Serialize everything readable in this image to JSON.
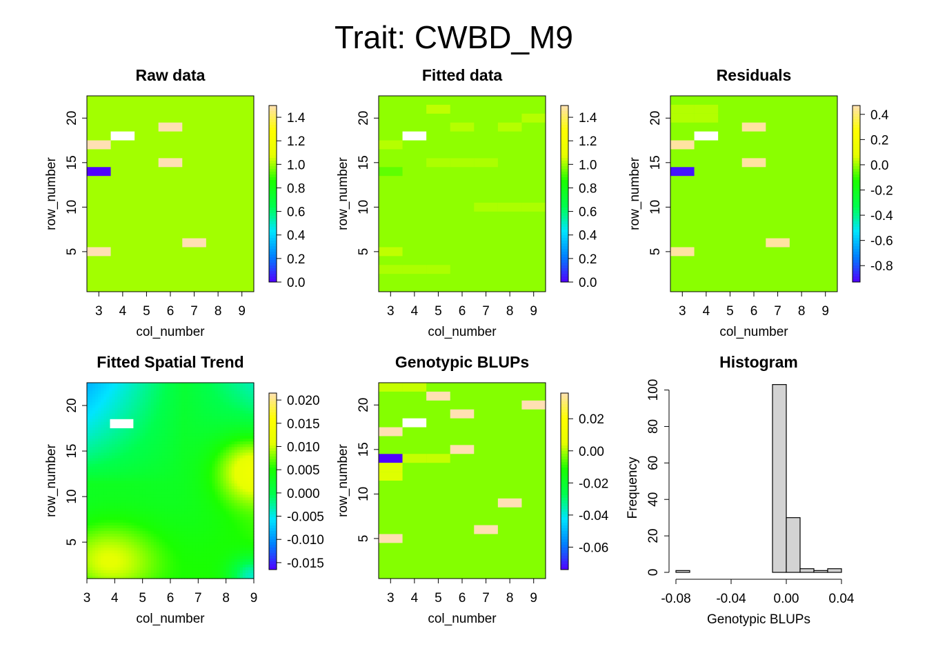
{
  "suptitle": "Trait: CWBD_M9",
  "colors": {
    "scale": [
      "#5000ff",
      "#0080ff",
      "#00e5ff",
      "#00ff4d",
      "#1aff00",
      "#e6ff00",
      "#ffff00",
      "#ffe0b3"
    ],
    "missing": "#ffffff",
    "hist_fill": "#d3d3d3"
  },
  "chart_data": [
    {
      "type": "heatmap",
      "title": "Raw data",
      "xlabel": "col_number",
      "ylabel": "row_number",
      "xticks": [
        3,
        4,
        5,
        6,
        7,
        8,
        9
      ],
      "yticks": [
        5,
        10,
        15,
        20
      ],
      "xlim": [
        2.5,
        9.5
      ],
      "ylim": [
        0.5,
        22.5
      ],
      "zlim": [
        0,
        1.5
      ],
      "background_value": 1.0,
      "cells": [
        {
          "x": 3,
          "y": 17,
          "z": 1.5
        },
        {
          "x": 3,
          "y": 14,
          "z": 0.0
        },
        {
          "x": 3,
          "y": 5,
          "z": 1.5
        },
        {
          "x": 4,
          "y": 18,
          "z": null
        },
        {
          "x": 6,
          "y": 19,
          "z": 1.5
        },
        {
          "x": 6,
          "y": 15,
          "z": 1.5
        },
        {
          "x": 7,
          "y": 6,
          "z": 1.5
        }
      ],
      "legend": {
        "ticks": [
          "1.4",
          "1.2",
          "1.0",
          "0.8",
          "0.6",
          "0.4",
          "0.2",
          "0.0"
        ],
        "values": [
          1.4,
          1.2,
          1.0,
          0.8,
          0.6,
          0.4,
          0.2,
          0.0
        ]
      }
    },
    {
      "type": "heatmap",
      "title": "Fitted data",
      "xlabel": "col_number",
      "ylabel": "row_number",
      "xticks": [
        3,
        4,
        5,
        6,
        7,
        8,
        9
      ],
      "yticks": [
        5,
        10,
        15,
        20
      ],
      "xlim": [
        2.5,
        9.5
      ],
      "ylim": [
        0.5,
        22.5
      ],
      "zlim": [
        0,
        1.5
      ],
      "background_value": 0.98,
      "cells": [
        {
          "x": 3,
          "y": 14,
          "z": 0.93
        },
        {
          "x": 3,
          "y": 17,
          "z": 1.02
        },
        {
          "x": 3,
          "y": 5,
          "z": 1.03
        },
        {
          "x": 4,
          "y": 18,
          "z": null
        },
        {
          "x": 5,
          "y": 21,
          "z": 1.03
        },
        {
          "x": 6,
          "y": 19,
          "z": 1.02
        },
        {
          "x": 8,
          "y": 19,
          "z": 1.02
        },
        {
          "x": 9,
          "y": 20,
          "z": 1.02
        },
        {
          "x": 5,
          "y": 15,
          "z": 1.01
        },
        {
          "x": 6,
          "y": 15,
          "z": 1.01
        },
        {
          "x": 7,
          "y": 15,
          "z": 1.01
        },
        {
          "x": 7,
          "y": 10,
          "z": 1.01
        },
        {
          "x": 8,
          "y": 10,
          "z": 1.01
        },
        {
          "x": 9,
          "y": 10,
          "z": 1.01
        },
        {
          "x": 3,
          "y": 3,
          "z": 1.01
        },
        {
          "x": 4,
          "y": 3,
          "z": 1.01
        },
        {
          "x": 5,
          "y": 3,
          "z": 1.01
        }
      ],
      "legend": {
        "ticks": [
          "1.4",
          "1.2",
          "1.0",
          "0.8",
          "0.6",
          "0.4",
          "0.2",
          "0.0"
        ],
        "values": [
          1.4,
          1.2,
          1.0,
          0.8,
          0.6,
          0.4,
          0.2,
          0.0
        ]
      }
    },
    {
      "type": "heatmap",
      "title": "Residuals",
      "xlabel": "col_number",
      "ylabel": "row_number",
      "xticks": [
        3,
        4,
        5,
        6,
        7,
        8,
        9
      ],
      "yticks": [
        5,
        10,
        15,
        20
      ],
      "xlim": [
        2.5,
        9.5
      ],
      "ylim": [
        0.5,
        22.5
      ],
      "zlim": [
        -0.93,
        0.47
      ],
      "background_value": -0.02,
      "cells": [
        {
          "x": 3,
          "y": 17,
          "z": 0.45
        },
        {
          "x": 3,
          "y": 14,
          "z": -0.9
        },
        {
          "x": 3,
          "y": 5,
          "z": 0.45
        },
        {
          "x": 4,
          "y": 18,
          "z": null
        },
        {
          "x": 6,
          "y": 19,
          "z": 0.45
        },
        {
          "x": 6,
          "y": 15,
          "z": 0.45
        },
        {
          "x": 7,
          "y": 6,
          "z": 0.45
        },
        {
          "x": 3,
          "y": 21,
          "z": 0.02
        },
        {
          "x": 4,
          "y": 21,
          "z": 0.02
        },
        {
          "x": 3,
          "y": 20,
          "z": 0.02
        },
        {
          "x": 4,
          "y": 20,
          "z": 0.02
        }
      ],
      "legend": {
        "ticks": [
          "0.4",
          "0.2",
          "0.0",
          "-0.2",
          "-0.4",
          "-0.6",
          "-0.8"
        ],
        "values": [
          0.4,
          0.2,
          0.0,
          -0.2,
          -0.4,
          -0.6,
          -0.8
        ]
      }
    },
    {
      "type": "heatmap",
      "title": "Fitted Spatial Trend",
      "xlabel": "col_number",
      "ylabel": "row_number",
      "xticks": [
        3,
        4,
        5,
        6,
        7,
        8,
        9
      ],
      "yticks": [
        5,
        10,
        15,
        20
      ],
      "xlim": [
        3,
        9
      ],
      "ylim": [
        1,
        22.5
      ],
      "zlim": [
        -0.0165,
        0.0215
      ],
      "missing_cells": [
        {
          "x": 4.25,
          "y": 18
        }
      ],
      "legend": {
        "ticks": [
          "0.020",
          "0.015",
          "0.010",
          "0.005",
          "0.000",
          "-0.005",
          "-0.010",
          "-0.015"
        ],
        "values": [
          0.02,
          0.015,
          0.01,
          0.005,
          0.0,
          -0.005,
          -0.01,
          -0.015
        ]
      }
    },
    {
      "type": "heatmap",
      "title": "Genotypic BLUPs",
      "xlabel": "col_number",
      "ylabel": "row_number",
      "xticks": [
        3,
        4,
        5,
        6,
        7,
        8,
        9
      ],
      "yticks": [
        5,
        10,
        15,
        20
      ],
      "xlim": [
        2.5,
        9.5
      ],
      "ylim": [
        0.5,
        22.5
      ],
      "zlim": [
        -0.074,
        0.036
      ],
      "background_value": -0.003,
      "cells": [
        {
          "x": 3,
          "y": 17,
          "z": 0.036
        },
        {
          "x": 3,
          "y": 14,
          "z": -0.074
        },
        {
          "x": 3,
          "y": 5,
          "z": 0.036
        },
        {
          "x": 4,
          "y": 18,
          "z": null
        },
        {
          "x": 5,
          "y": 21,
          "z": 0.036
        },
        {
          "x": 6,
          "y": 19,
          "z": 0.036
        },
        {
          "x": 6,
          "y": 15,
          "z": 0.036
        },
        {
          "x": 9,
          "y": 20,
          "z": 0.036
        },
        {
          "x": 8,
          "y": 9,
          "z": 0.036
        },
        {
          "x": 7,
          "y": 6,
          "z": 0.036
        },
        {
          "x": 3,
          "y": 13,
          "z": 0.004
        },
        {
          "x": 3,
          "y": 12,
          "z": 0.004
        },
        {
          "x": 4,
          "y": 14,
          "z": 0.002
        },
        {
          "x": 5,
          "y": 14,
          "z": 0.002
        },
        {
          "x": 3,
          "y": 22,
          "z": 0.002
        },
        {
          "x": 4,
          "y": 22,
          "z": 0.002
        }
      ],
      "legend": {
        "ticks": [
          "0.02",
          "0.00",
          "-0.02",
          "-0.04",
          "-0.06"
        ],
        "values": [
          0.02,
          0.0,
          -0.02,
          -0.04,
          -0.06
        ]
      }
    },
    {
      "type": "bar",
      "title": "Histogram",
      "xlabel": "Genotypic BLUPs",
      "ylabel": "Frequency",
      "xticks": [
        "-0.08",
        "-0.04",
        "0.00",
        "0.04"
      ],
      "xtick_values": [
        -0.08,
        -0.04,
        0.0,
        0.04
      ],
      "yticks": [
        "0",
        "20",
        "40",
        "60",
        "80",
        "100"
      ],
      "ytick_values": [
        0,
        20,
        40,
        60,
        80,
        100
      ],
      "xlim": [
        -0.08,
        0.04
      ],
      "ylim": [
        0,
        104
      ],
      "bin_width": 0.01,
      "bins": [
        {
          "x0": -0.08,
          "x1": -0.07,
          "count": 1
        },
        {
          "x0": -0.07,
          "x1": -0.06,
          "count": 0
        },
        {
          "x0": -0.06,
          "x1": -0.05,
          "count": 0
        },
        {
          "x0": -0.05,
          "x1": -0.04,
          "count": 0
        },
        {
          "x0": -0.04,
          "x1": -0.03,
          "count": 0
        },
        {
          "x0": -0.03,
          "x1": -0.02,
          "count": 0
        },
        {
          "x0": -0.02,
          "x1": -0.01,
          "count": 0
        },
        {
          "x0": -0.01,
          "x1": 0.0,
          "count": 103
        },
        {
          "x0": 0.0,
          "x1": 0.01,
          "count": 30
        },
        {
          "x0": 0.01,
          "x1": 0.02,
          "count": 2
        },
        {
          "x0": 0.02,
          "x1": 0.03,
          "count": 1
        },
        {
          "x0": 0.03,
          "x1": 0.04,
          "count": 2
        }
      ]
    }
  ]
}
